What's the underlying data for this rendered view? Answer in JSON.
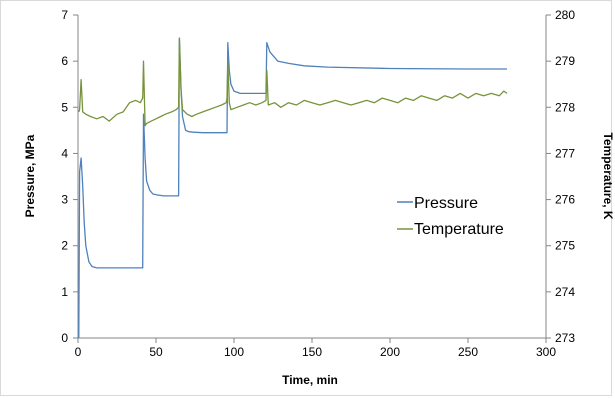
{
  "chart_data": {
    "type": "line",
    "xlabel": "Time, min",
    "ylabel": "Pressure, MPa",
    "y2label": "Temperature, K",
    "xlim": [
      0,
      300
    ],
    "ylim": [
      0,
      7
    ],
    "y2lim": [
      273,
      280
    ],
    "xticks": [
      "0",
      "50",
      "100",
      "150",
      "200",
      "250",
      "300"
    ],
    "yticks": [
      "0",
      "1",
      "2",
      "3",
      "4",
      "5",
      "6",
      "7"
    ],
    "y2ticks": [
      "273",
      "274",
      "275",
      "276",
      "277",
      "278",
      "279",
      "280"
    ],
    "grid": false,
    "legend_position": "right-center",
    "series": [
      {
        "name": "Pressure",
        "axis": "left",
        "color": "#4f81bd",
        "x": [
          0.5,
          1,
          2,
          3,
          4,
          5,
          7,
          9,
          12,
          20,
          30,
          41.5,
          42,
          43,
          44,
          46,
          48,
          51,
          55,
          64.5,
          65,
          66,
          67,
          69,
          71,
          74,
          80,
          95.5,
          96,
          97,
          98,
          100,
          104,
          110,
          120.5,
          121,
          123,
          128,
          135,
          145,
          160,
          200,
          250,
          275
        ],
        "values": [
          0,
          3.6,
          3.9,
          3.3,
          2.5,
          2.0,
          1.65,
          1.55,
          1.52,
          1.52,
          1.52,
          1.52,
          4.85,
          3.9,
          3.4,
          3.2,
          3.12,
          3.1,
          3.08,
          3.08,
          6.5,
          5.4,
          4.8,
          4.5,
          4.47,
          4.46,
          4.45,
          4.45,
          6.4,
          5.8,
          5.5,
          5.35,
          5.3,
          5.3,
          5.3,
          6.4,
          6.2,
          6.0,
          5.95,
          5.9,
          5.87,
          5.84,
          5.83,
          5.83
        ]
      },
      {
        "name": "Temperature",
        "axis": "right",
        "color": "#77933c",
        "x": [
          0.5,
          1,
          2,
          3,
          5,
          8,
          12,
          16,
          20,
          25,
          29,
          33,
          37,
          40,
          41.5,
          42,
          43,
          44,
          47,
          50,
          53,
          56,
          60,
          63,
          64.5,
          65,
          66,
          67,
          70,
          73,
          76,
          80,
          84,
          88,
          92,
          95,
          95.5,
          96,
          97,
          98,
          102,
          106,
          110,
          114,
          118,
          120.5,
          121,
          122,
          126,
          130,
          135,
          140,
          145,
          150,
          155,
          160,
          165,
          170,
          175,
          180,
          185,
          190,
          195,
          200,
          205,
          210,
          215,
          220,
          225,
          230,
          235,
          240,
          245,
          250,
          255,
          260,
          265,
          270,
          273,
          275
        ],
        "values": [
          277.9,
          277.95,
          278.6,
          277.9,
          277.85,
          277.8,
          277.75,
          277.8,
          277.7,
          277.85,
          277.9,
          278.1,
          278.15,
          278.1,
          278.2,
          279.0,
          277.6,
          277.65,
          277.7,
          277.75,
          277.8,
          277.85,
          277.9,
          277.95,
          278.0,
          279.5,
          278.4,
          277.95,
          277.85,
          277.8,
          277.85,
          277.9,
          277.95,
          278.0,
          278.05,
          278.1,
          278.2,
          279.0,
          278.1,
          277.95,
          278.0,
          278.05,
          278.1,
          278.05,
          278.1,
          278.15,
          278.8,
          278.05,
          278.1,
          278.0,
          278.1,
          278.05,
          278.15,
          278.1,
          278.05,
          278.1,
          278.15,
          278.1,
          278.05,
          278.1,
          278.15,
          278.1,
          278.2,
          278.15,
          278.1,
          278.2,
          278.15,
          278.25,
          278.2,
          278.15,
          278.25,
          278.2,
          278.3,
          278.2,
          278.3,
          278.25,
          278.3,
          278.25,
          278.35,
          278.3
        ]
      }
    ]
  }
}
